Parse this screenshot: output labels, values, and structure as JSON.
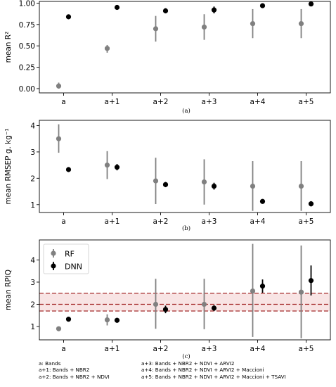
{
  "chart_data": [
    {
      "type": "scatter",
      "title": "",
      "xlabel": "",
      "ylabel": "mean R²",
      "caption": "(a)",
      "categories": [
        "a",
        "a+1",
        "a+2",
        "a+3",
        "a+4",
        "a+5"
      ],
      "ylim": [
        -0.05,
        1.02
      ],
      "yticks": [
        0.0,
        0.25,
        0.5,
        0.75,
        1.0
      ],
      "ytick_labels": [
        "0.00",
        "0.25",
        "0.50",
        "0.75",
        "1.00"
      ],
      "grid": false,
      "series": [
        {
          "color": "#808080",
          "values": [
            0.03,
            0.47,
            0.7,
            0.72,
            0.76,
            0.76
          ],
          "err_low": [
            0.0,
            0.42,
            0.55,
            0.57,
            0.59,
            0.59
          ],
          "err_high": [
            0.07,
            0.51,
            0.85,
            0.87,
            0.93,
            0.93
          ]
        },
        {
          "color": "#000000",
          "values": [
            0.84,
            0.95,
            0.91,
            0.92,
            0.97,
            0.99
          ],
          "err_low": [
            0.82,
            0.94,
            0.88,
            0.88,
            0.96,
            0.98
          ],
          "err_high": [
            0.86,
            0.96,
            0.94,
            0.96,
            0.98,
            1.0
          ]
        }
      ]
    },
    {
      "type": "scatter",
      "title": "",
      "xlabel": "",
      "ylabel": "mean RMSEP g. kg⁻¹",
      "caption": "(b)",
      "categories": [
        "a",
        "a+1",
        "a+2",
        "a+3",
        "a+4",
        "a+5"
      ],
      "ylim": [
        0.7,
        4.2
      ],
      "yticks": [
        1,
        2,
        3,
        4
      ],
      "ytick_labels": [
        "1",
        "2",
        "3",
        "4"
      ],
      "grid": false,
      "series": [
        {
          "color": "#808080",
          "values": [
            3.5,
            2.5,
            1.9,
            1.86,
            1.7,
            1.7
          ],
          "err_low": [
            2.97,
            1.97,
            1.02,
            1.0,
            0.76,
            0.76
          ],
          "err_high": [
            4.05,
            3.03,
            2.78,
            2.72,
            2.65,
            2.65
          ]
        },
        {
          "color": "#000000",
          "values": [
            2.33,
            2.42,
            1.76,
            1.7,
            1.12,
            1.03
          ],
          "err_low": [
            2.25,
            2.3,
            1.66,
            1.57,
            1.07,
            0.93
          ],
          "err_high": [
            2.41,
            2.54,
            1.86,
            1.83,
            1.17,
            1.13
          ]
        }
      ]
    },
    {
      "type": "scatter",
      "title": "",
      "xlabel": "",
      "ylabel": "mean RPIQ",
      "caption": "(c)",
      "categories": [
        "a",
        "a+1",
        "a+2",
        "a+3",
        "a+4",
        "a+5"
      ],
      "ylim": [
        0.4,
        4.9
      ],
      "yticks": [
        1,
        2,
        3,
        4
      ],
      "ytick_labels": [
        "1",
        "2",
        "3",
        "4"
      ],
      "grid": false,
      "legend_position": "top-left",
      "reference_lines": [
        1.7,
        2.0,
        2.5
      ],
      "series": [
        {
          "name": "RF",
          "color": "#808080",
          "values": [
            0.9,
            1.3,
            2.0,
            2.0,
            2.6,
            2.55
          ],
          "err_low": [
            0.8,
            1.05,
            0.9,
            0.88,
            0.53,
            0.47
          ],
          "err_high": [
            1.0,
            1.55,
            3.15,
            3.15,
            4.72,
            4.65
          ]
        },
        {
          "name": "DNN",
          "color": "#000000",
          "values": [
            1.33,
            1.28,
            1.77,
            1.83,
            2.82,
            3.07
          ],
          "err_low": [
            1.28,
            1.17,
            1.6,
            1.7,
            2.52,
            2.4
          ],
          "err_high": [
            1.38,
            1.39,
            1.94,
            1.96,
            3.12,
            3.75
          ]
        }
      ]
    }
  ],
  "footer": {
    "col1": [
      "a: Bands",
      "a+1: Bands + NBR2",
      "a+2: Bands + NBR2 + NDVI"
    ],
    "col2": [
      "a+3: Bands + NBR2 + NDVI + ARVI2",
      "a+4: Bands + NBR2 + NDVI + ARVI2 + Maccioni",
      "a+5: Bands + NBR2 + NDVI + ARVI2 + Maccioni + TSAVI"
    ]
  }
}
